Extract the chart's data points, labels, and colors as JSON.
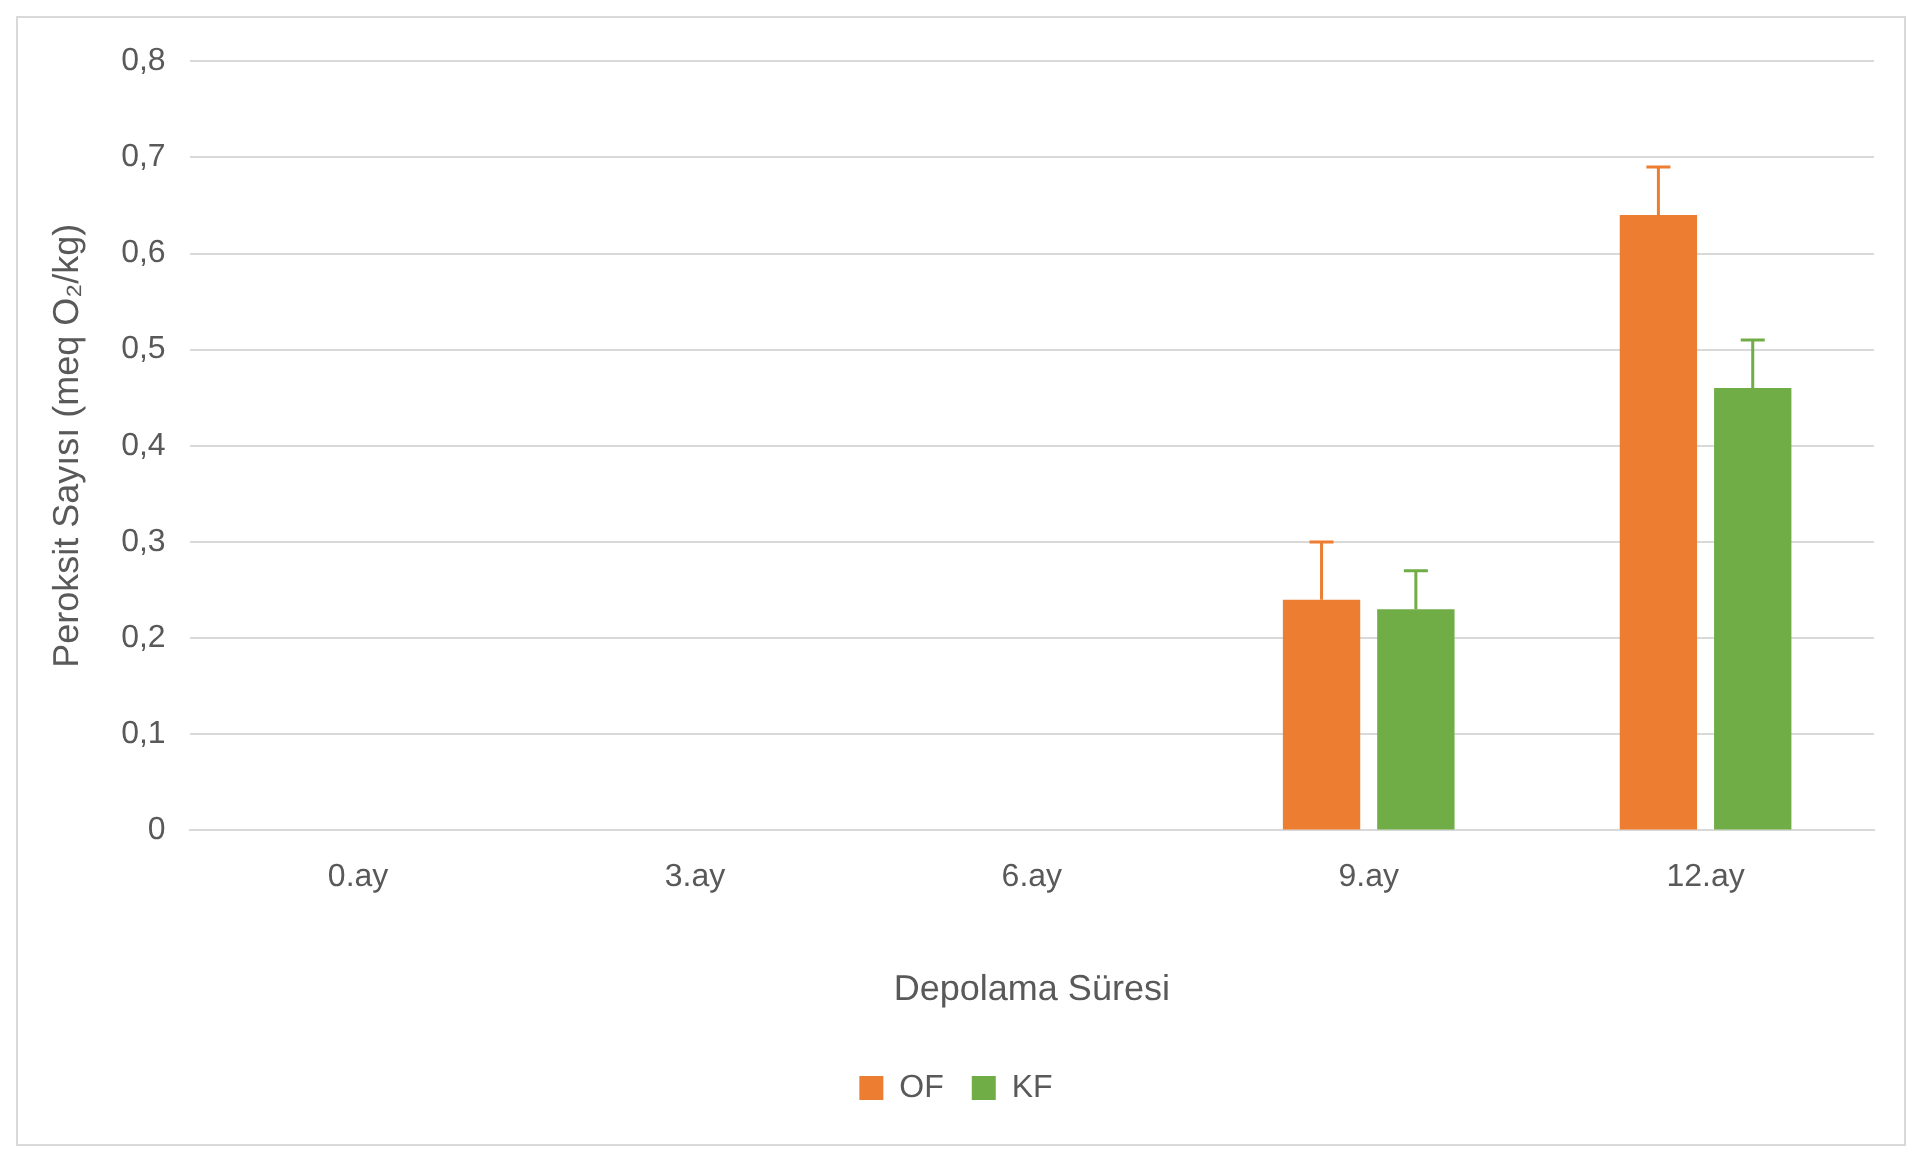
{
  "chart_data": {
    "type": "bar",
    "xlabel": "Depolama Süresi",
    "ylabel": "Peroksit Sayısı (meq O₂/kg)",
    "categories": [
      "0.ay",
      "3.ay",
      "6.ay",
      "9.ay",
      "12.ay"
    ],
    "series": [
      {
        "name": "OF",
        "color": "#ed7d31",
        "values": [
          0,
          0,
          0,
          0.24,
          0.64
        ],
        "errors": [
          null,
          null,
          null,
          [
            0.24,
            0.3
          ],
          [
            0.64,
            0.69
          ]
        ]
      },
      {
        "name": "KF",
        "color": "#70ad47",
        "values": [
          0,
          0,
          0,
          0.23,
          0.46
        ],
        "errors": [
          null,
          null,
          null,
          [
            0.23,
            0.27
          ],
          [
            0.46,
            0.51
          ]
        ]
      }
    ],
    "ylim": [
      0,
      0.8
    ],
    "yticks": [
      {
        "value": 0,
        "label": "0"
      },
      {
        "value": 0.1,
        "label": "0,1"
      },
      {
        "value": 0.2,
        "label": "0,2"
      },
      {
        "value": 0.3,
        "label": "0,3"
      },
      {
        "value": 0.4,
        "label": "0,4"
      },
      {
        "value": 0.5,
        "label": "0,5"
      },
      {
        "value": 0.6,
        "label": "0,6"
      },
      {
        "value": 0.7,
        "label": "0,7"
      },
      {
        "value": 0.8,
        "label": "0,8"
      }
    ],
    "grid": "y",
    "legend": "bottom"
  }
}
